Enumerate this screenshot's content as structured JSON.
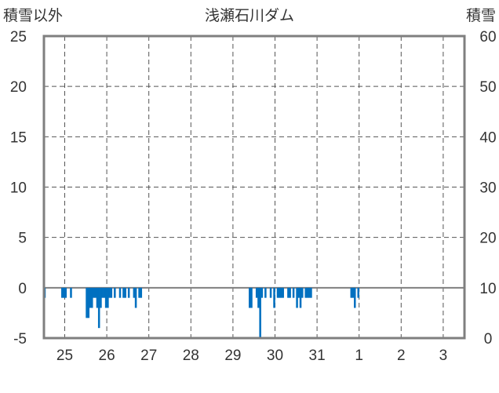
{
  "chart_data": {
    "type": "bar",
    "title": "浅瀬石川ダム",
    "ylabel_left": "積雪以外",
    "ylabel_right": "積雪",
    "ylim_left": [
      -5,
      25
    ],
    "ylim_right": [
      0,
      60
    ],
    "yticks_left": [
      25,
      20,
      15,
      10,
      5,
      0,
      -5
    ],
    "yticks_right": [
      60,
      50,
      40,
      30,
      20,
      10,
      0
    ],
    "xtick_labels": [
      "25",
      "26",
      "27",
      "28",
      "29",
      "30",
      "31",
      "1",
      "2",
      "3"
    ],
    "grid": true,
    "series": [
      {
        "axis": "left",
        "color": "#0070c0",
        "hours_from_start": [
          0,
          10,
          11,
          12,
          15,
          24,
          25,
          26,
          27,
          28,
          29,
          30,
          31,
          32,
          33,
          34,
          35,
          36,
          37,
          38,
          40,
          43,
          45,
          46,
          48,
          51,
          52,
          54,
          55,
          117,
          118,
          121,
          122,
          123,
          124,
          126,
          129,
          131,
          133,
          134,
          135,
          136,
          139,
          140,
          142,
          144,
          145,
          146,
          147,
          149,
          150,
          151,
          152,
          175,
          176,
          177,
          179
        ],
        "values": [
          -1,
          -1,
          -1,
          -1,
          -1,
          -3,
          -3,
          -2,
          -2,
          -1,
          -1,
          -2,
          -4,
          -2,
          -1,
          -1,
          -2,
          -2,
          -1,
          -1,
          -1,
          -1,
          -1,
          -1,
          -1,
          -1,
          -2,
          -1,
          -1,
          -2,
          -2,
          -1,
          -2,
          -5,
          -1,
          -1,
          -1,
          -2,
          -1,
          -1,
          -1,
          -1,
          -1,
          -1,
          -1,
          -2,
          -1,
          -2,
          -1,
          -1,
          -1,
          -1,
          -1,
          -1,
          -1,
          -2,
          -1
        ]
      }
    ]
  }
}
